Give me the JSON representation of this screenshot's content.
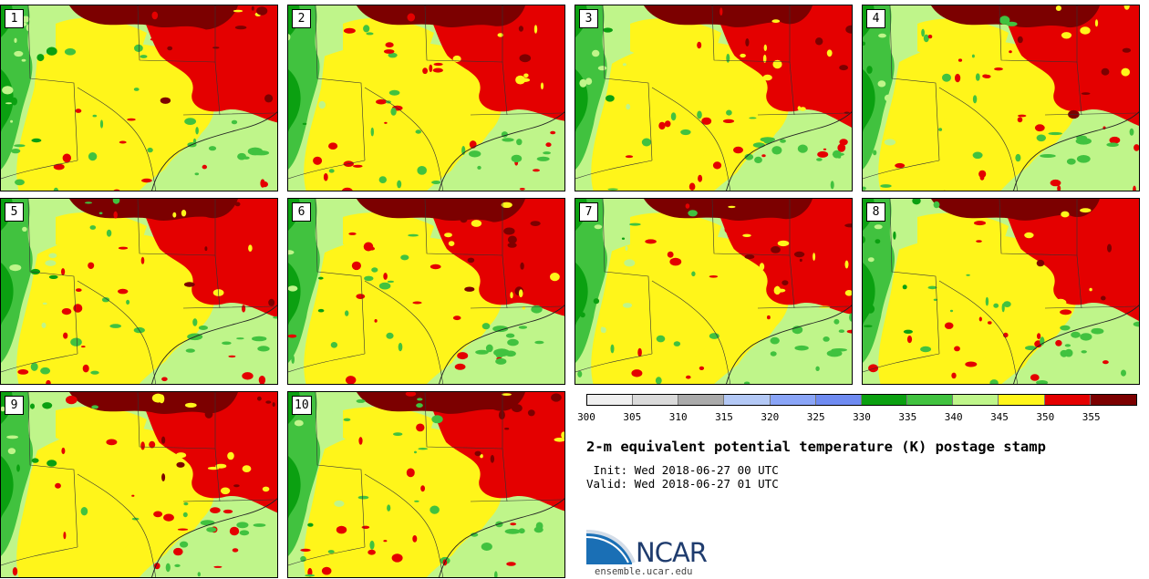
{
  "panels": [
    {
      "label": "1"
    },
    {
      "label": "2"
    },
    {
      "label": "3"
    },
    {
      "label": "4"
    },
    {
      "label": "5"
    },
    {
      "label": "6"
    },
    {
      "label": "7"
    },
    {
      "label": "8"
    },
    {
      "label": "9"
    },
    {
      "label": "10"
    }
  ],
  "colorbar": {
    "segments": [
      {
        "range": "300-305",
        "color": "#efefef"
      },
      {
        "range": "305-310",
        "color": "#dadada"
      },
      {
        "range": "310-315",
        "color": "#aaaaaa"
      },
      {
        "range": "315-320",
        "color": "#b3c8f5"
      },
      {
        "range": "320-325",
        "color": "#8aa5f7"
      },
      {
        "range": "325-330",
        "color": "#6f8bf1"
      },
      {
        "range": "330-335",
        "color": "#0ba011"
      },
      {
        "range": "335-340",
        "color": "#41c23f"
      },
      {
        "range": "340-345",
        "color": "#bff58a"
      },
      {
        "range": "345-350",
        "color": "#fff51a"
      },
      {
        "range": "350-355",
        "color": "#e40000"
      },
      {
        "range": "355-360",
        "color": "#7c0000"
      }
    ],
    "ticks": [
      "300",
      "305",
      "310",
      "315",
      "320",
      "325",
      "330",
      "335",
      "340",
      "345",
      "350",
      "355"
    ]
  },
  "title": "2-m equivalent potential temperature (K) postage stamp",
  "init": " Init: Wed 2018-06-27 00 UTC",
  "valid": "Valid: Wed 2018-06-27 01 UTC",
  "logo": {
    "text": "NCAR",
    "color": "#1f3c6e"
  },
  "url": "ensemble.ucar.edu"
}
